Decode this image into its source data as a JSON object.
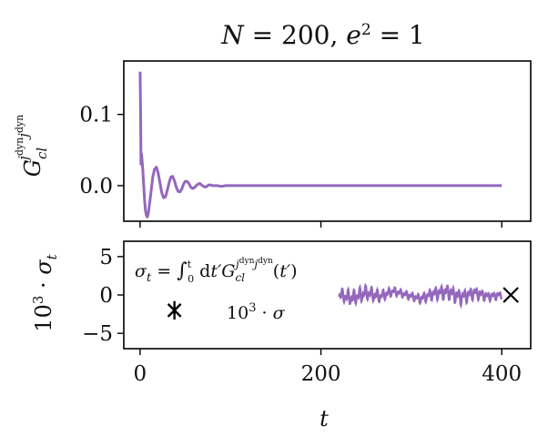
{
  "figure": {
    "title": "N = 200, e² = 1",
    "line_color": "#9467bd",
    "axis_color": "#000000"
  },
  "chart_data": [
    {
      "type": "line",
      "panel": "top",
      "title": "N = 200, e² = 1",
      "xlabel": "",
      "ylabel": "G_cl^{j^dyn j^dyn}",
      "xlim": [
        -18,
        432
      ],
      "ylim": [
        -0.05,
        0.175
      ],
      "yticks": [
        0.0,
        0.1
      ],
      "ytick_labels": [
        "0.0",
        "0.1"
      ],
      "xticks": [
        0,
        200,
        400
      ],
      "xtick_labels_shown": false,
      "grid": false,
      "series": [
        {
          "color": "#9467bd",
          "description": "damped oscillation: spike to ~0.16 at t=0, min ~-0.044 near t≈8, decays to 0 by t≈100, flat to t=400",
          "x": [
            0,
            0.4,
            1,
            1.5,
            2,
            3,
            4,
            5,
            6,
            7,
            8,
            9,
            10,
            12,
            14,
            16,
            18,
            20,
            22,
            24,
            26,
            28,
            30,
            32,
            34,
            36,
            38,
            40,
            42,
            44,
            46,
            48,
            50,
            52,
            54,
            56,
            58,
            60,
            62,
            64,
            66,
            68,
            70,
            72,
            74,
            76,
            78,
            80,
            85,
            90,
            95,
            100,
            120,
            150,
            200,
            250,
            300,
            350,
            400
          ],
          "y": [
            0.16,
            0.12,
            0.03,
            0.045,
            0.038,
            0.022,
            0.0,
            -0.02,
            -0.035,
            -0.042,
            -0.044,
            -0.04,
            -0.03,
            -0.01,
            0.012,
            0.023,
            0.026,
            0.018,
            0.004,
            -0.01,
            -0.017,
            -0.016,
            -0.007,
            0.004,
            0.012,
            0.013,
            0.007,
            -0.002,
            -0.008,
            -0.009,
            -0.005,
            0.002,
            0.006,
            0.006,
            0.003,
            -0.002,
            -0.004,
            -0.003,
            0.0,
            0.002,
            0.003,
            0.001,
            -0.001,
            -0.002,
            -0.001,
            0.001,
            0.001,
            0.0,
            0.0,
            -0.001,
            0.0,
            0.0,
            0.0,
            0.0,
            0.0,
            0.0,
            0.0,
            0.0,
            0.0
          ]
        }
      ]
    },
    {
      "type": "line",
      "panel": "bottom",
      "xlabel": "t",
      "ylabel": "10³ · σ_t",
      "xlim": [
        -18,
        432
      ],
      "ylim": [
        -7,
        7
      ],
      "yticks": [
        -5,
        0,
        5
      ],
      "ytick_labels": [
        "−5",
        "0",
        "5"
      ],
      "xticks": [
        0,
        200,
        400
      ],
      "xtick_labels": [
        "0",
        "200",
        "400"
      ],
      "grid": false,
      "annotations": [
        {
          "text": "σ_t = ∫_0^t dt′ G_cl^{j^dyn j^dyn}(t′)"
        },
        {
          "text": "10³ · σ"
        }
      ],
      "markers": [
        {
          "shape": "asterisk",
          "x": 38,
          "y": -2,
          "yerr": 1.2,
          "color": "#000000"
        },
        {
          "shape": "x",
          "x": 410,
          "y": 0,
          "color": "#000000"
        }
      ],
      "series": [
        {
          "color": "#9467bd",
          "description": "thick band of rapid oscillation between t≈220 and t≈400, band roughly -1.5 to 1.5 with slow wave",
          "x_start": 220,
          "x_end": 400,
          "band_center": [
            [
              220,
              0.0
            ],
            [
              235,
              -0.4
            ],
            [
              250,
              0.3
            ],
            [
              265,
              -0.2
            ],
            [
              280,
              0.5
            ],
            [
              295,
              0.0
            ],
            [
              310,
              -0.5
            ],
            [
              325,
              0.2
            ],
            [
              340,
              0.4
            ],
            [
              355,
              -0.3
            ],
            [
              370,
              0.3
            ],
            [
              385,
              -0.2
            ],
            [
              400,
              0.0
            ]
          ],
          "band_halfwidth": 1.1,
          "fast_period": 13
        }
      ]
    }
  ]
}
